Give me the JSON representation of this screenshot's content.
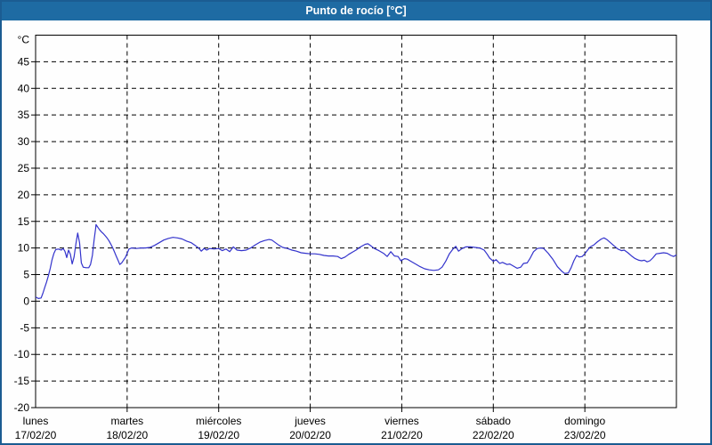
{
  "window": {
    "title": "Punto de rocío [°C]"
  },
  "theme": {
    "titlebar_bg": "#1e6ba3",
    "frame_color": "#1b5c92",
    "content_bg": "#fefefe",
    "grid_color": "#000000",
    "axis_color": "#000000",
    "text_color": "#000000",
    "line_color": "#3333cc"
  },
  "chart_data": {
    "type": "line",
    "title": "Punto de rocío [°C]",
    "ylabel": "°C",
    "xlabel": "",
    "legend_position": "none",
    "grid": "dashed",
    "y_axis": {
      "min": -20,
      "max": 50,
      "tick_step": 5,
      "ticks": [
        45,
        40,
        35,
        30,
        25,
        20,
        15,
        10,
        5,
        0,
        -5,
        -10,
        -15,
        -20
      ],
      "unit_label": "°C"
    },
    "x_axis": {
      "range_days": 7,
      "days": [
        {
          "name": "lunes",
          "date": "17/02/20"
        },
        {
          "name": "martes",
          "date": "18/02/20"
        },
        {
          "name": "miércoles",
          "date": "19/02/20"
        },
        {
          "name": "jueves",
          "date": "20/02/20"
        },
        {
          "name": "viernes",
          "date": "21/02/20"
        },
        {
          "name": "sábado",
          "date": "22/02/20"
        },
        {
          "name": "domingo",
          "date": "23/02/20"
        }
      ]
    },
    "series": [
      {
        "name": "Punto de rocío",
        "color": "#3333cc",
        "points_t_days_value_c": [
          [
            0.0,
            0.8
          ],
          [
            0.03,
            0.5
          ],
          [
            0.06,
            0.6
          ],
          [
            0.08,
            1.5
          ],
          [
            0.1,
            2.6
          ],
          [
            0.12,
            3.6
          ],
          [
            0.14,
            4.8
          ],
          [
            0.16,
            6.2
          ],
          [
            0.18,
            7.8
          ],
          [
            0.2,
            9.0
          ],
          [
            0.22,
            9.7
          ],
          [
            0.25,
            9.8
          ],
          [
            0.28,
            9.6
          ],
          [
            0.3,
            9.9
          ],
          [
            0.32,
            9.4
          ],
          [
            0.34,
            8.2
          ],
          [
            0.36,
            9.6
          ],
          [
            0.38,
            8.8
          ],
          [
            0.4,
            7.0
          ],
          [
            0.42,
            8.3
          ],
          [
            0.44,
            10.8
          ],
          [
            0.46,
            12.8
          ],
          [
            0.48,
            11.0
          ],
          [
            0.5,
            7.2
          ],
          [
            0.52,
            6.4
          ],
          [
            0.55,
            6.3
          ],
          [
            0.58,
            6.3
          ],
          [
            0.6,
            6.9
          ],
          [
            0.62,
            8.6
          ],
          [
            0.64,
            11.6
          ],
          [
            0.655,
            13.6
          ],
          [
            0.66,
            14.4
          ],
          [
            0.68,
            13.9
          ],
          [
            0.7,
            13.4
          ],
          [
            0.72,
            13.0
          ],
          [
            0.74,
            12.7
          ],
          [
            0.76,
            12.3
          ],
          [
            0.78,
            11.9
          ],
          [
            0.8,
            11.4
          ],
          [
            0.82,
            10.8
          ],
          [
            0.84,
            10.1
          ],
          [
            0.86,
            9.3
          ],
          [
            0.88,
            8.5
          ],
          [
            0.9,
            7.7
          ],
          [
            0.92,
            6.9
          ],
          [
            0.94,
            7.2
          ],
          [
            0.96,
            7.7
          ],
          [
            0.98,
            8.2
          ],
          [
            1.0,
            9.0
          ],
          [
            1.02,
            9.8
          ],
          [
            1.05,
            10.0
          ],
          [
            1.1,
            9.9
          ],
          [
            1.15,
            10.0
          ],
          [
            1.2,
            10.0
          ],
          [
            1.25,
            10.1
          ],
          [
            1.3,
            10.5
          ],
          [
            1.35,
            11.0
          ],
          [
            1.4,
            11.5
          ],
          [
            1.45,
            11.8
          ],
          [
            1.5,
            12.0
          ],
          [
            1.55,
            11.9
          ],
          [
            1.6,
            11.7
          ],
          [
            1.65,
            11.3
          ],
          [
            1.7,
            11.0
          ],
          [
            1.75,
            10.4
          ],
          [
            1.78,
            10.0
          ],
          [
            1.81,
            9.4
          ],
          [
            1.84,
            9.9
          ],
          [
            1.87,
            9.6
          ],
          [
            1.9,
            9.9
          ],
          [
            1.95,
            9.8
          ],
          [
            2.0,
            9.9
          ],
          [
            2.04,
            9.5
          ],
          [
            2.08,
            9.8
          ],
          [
            2.12,
            9.3
          ],
          [
            2.16,
            10.2
          ],
          [
            2.2,
            9.6
          ],
          [
            2.25,
            9.5
          ],
          [
            2.3,
            9.6
          ],
          [
            2.35,
            10.0
          ],
          [
            2.4,
            10.6
          ],
          [
            2.45,
            11.1
          ],
          [
            2.5,
            11.4
          ],
          [
            2.55,
            11.6
          ],
          [
            2.58,
            11.5
          ],
          [
            2.62,
            11.0
          ],
          [
            2.66,
            10.5
          ],
          [
            2.7,
            10.1
          ],
          [
            2.75,
            9.9
          ],
          [
            2.8,
            9.6
          ],
          [
            2.85,
            9.4
          ],
          [
            2.9,
            9.1
          ],
          [
            2.95,
            9.0
          ],
          [
            3.0,
            8.9
          ],
          [
            3.05,
            8.9
          ],
          [
            3.1,
            8.8
          ],
          [
            3.15,
            8.6
          ],
          [
            3.2,
            8.5
          ],
          [
            3.25,
            8.5
          ],
          [
            3.3,
            8.4
          ],
          [
            3.34,
            8.0
          ],
          [
            3.38,
            8.3
          ],
          [
            3.42,
            8.8
          ],
          [
            3.46,
            9.2
          ],
          [
            3.5,
            9.6
          ],
          [
            3.55,
            10.2
          ],
          [
            3.6,
            10.7
          ],
          [
            3.63,
            10.8
          ],
          [
            3.67,
            10.3
          ],
          [
            3.7,
            9.9
          ],
          [
            3.75,
            9.5
          ],
          [
            3.8,
            9.0
          ],
          [
            3.84,
            8.4
          ],
          [
            3.88,
            9.3
          ],
          [
            3.92,
            8.5
          ],
          [
            3.96,
            8.4
          ],
          [
            3.99,
            7.6
          ],
          [
            4.03,
            8.0
          ],
          [
            4.06,
            7.9
          ],
          [
            4.1,
            7.5
          ],
          [
            4.15,
            7.0
          ],
          [
            4.2,
            6.5
          ],
          [
            4.25,
            6.1
          ],
          [
            4.3,
            5.9
          ],
          [
            4.35,
            5.8
          ],
          [
            4.4,
            5.9
          ],
          [
            4.44,
            6.4
          ],
          [
            4.48,
            7.5
          ],
          [
            4.52,
            8.9
          ],
          [
            4.56,
            9.8
          ],
          [
            4.59,
            10.3
          ],
          [
            4.62,
            9.4
          ],
          [
            4.66,
            9.9
          ],
          [
            4.7,
            10.2
          ],
          [
            4.75,
            10.2
          ],
          [
            4.8,
            10.1
          ],
          [
            4.85,
            10.0
          ],
          [
            4.9,
            9.6
          ],
          [
            4.93,
            8.9
          ],
          [
            4.96,
            8.1
          ],
          [
            5.0,
            7.5
          ],
          [
            5.03,
            7.8
          ],
          [
            5.07,
            7.1
          ],
          [
            5.1,
            7.3
          ],
          [
            5.15,
            6.9
          ],
          [
            5.18,
            7.0
          ],
          [
            5.22,
            6.6
          ],
          [
            5.26,
            6.2
          ],
          [
            5.3,
            6.4
          ],
          [
            5.33,
            7.1
          ],
          [
            5.37,
            7.2
          ],
          [
            5.4,
            8.0
          ],
          [
            5.44,
            9.3
          ],
          [
            5.48,
            9.9
          ],
          [
            5.52,
            10.0
          ],
          [
            5.55,
            9.9
          ],
          [
            5.6,
            9.0
          ],
          [
            5.65,
            7.9
          ],
          [
            5.7,
            6.5
          ],
          [
            5.75,
            5.6
          ],
          [
            5.78,
            5.2
          ],
          [
            5.82,
            5.3
          ],
          [
            5.85,
            6.3
          ],
          [
            5.88,
            7.6
          ],
          [
            5.91,
            8.6
          ],
          [
            5.94,
            8.3
          ],
          [
            5.97,
            8.4
          ],
          [
            6.0,
            8.9
          ],
          [
            6.03,
            9.6
          ],
          [
            6.06,
            10.2
          ],
          [
            6.1,
            10.6
          ],
          [
            6.14,
            11.2
          ],
          [
            6.18,
            11.7
          ],
          [
            6.21,
            11.9
          ],
          [
            6.24,
            11.6
          ],
          [
            6.28,
            11.0
          ],
          [
            6.32,
            10.4
          ],
          [
            6.36,
            9.8
          ],
          [
            6.4,
            9.5
          ],
          [
            6.43,
            9.6
          ],
          [
            6.47,
            9.1
          ],
          [
            6.51,
            8.5
          ],
          [
            6.55,
            8.0
          ],
          [
            6.59,
            7.7
          ],
          [
            6.62,
            7.6
          ],
          [
            6.65,
            7.7
          ],
          [
            6.68,
            7.4
          ],
          [
            6.71,
            7.6
          ],
          [
            6.74,
            8.1
          ],
          [
            6.78,
            8.9
          ],
          [
            6.82,
            9.0
          ],
          [
            6.86,
            9.1
          ],
          [
            6.9,
            9.0
          ],
          [
            6.94,
            8.6
          ],
          [
            6.97,
            8.4
          ],
          [
            7.0,
            8.7
          ]
        ]
      }
    ]
  }
}
